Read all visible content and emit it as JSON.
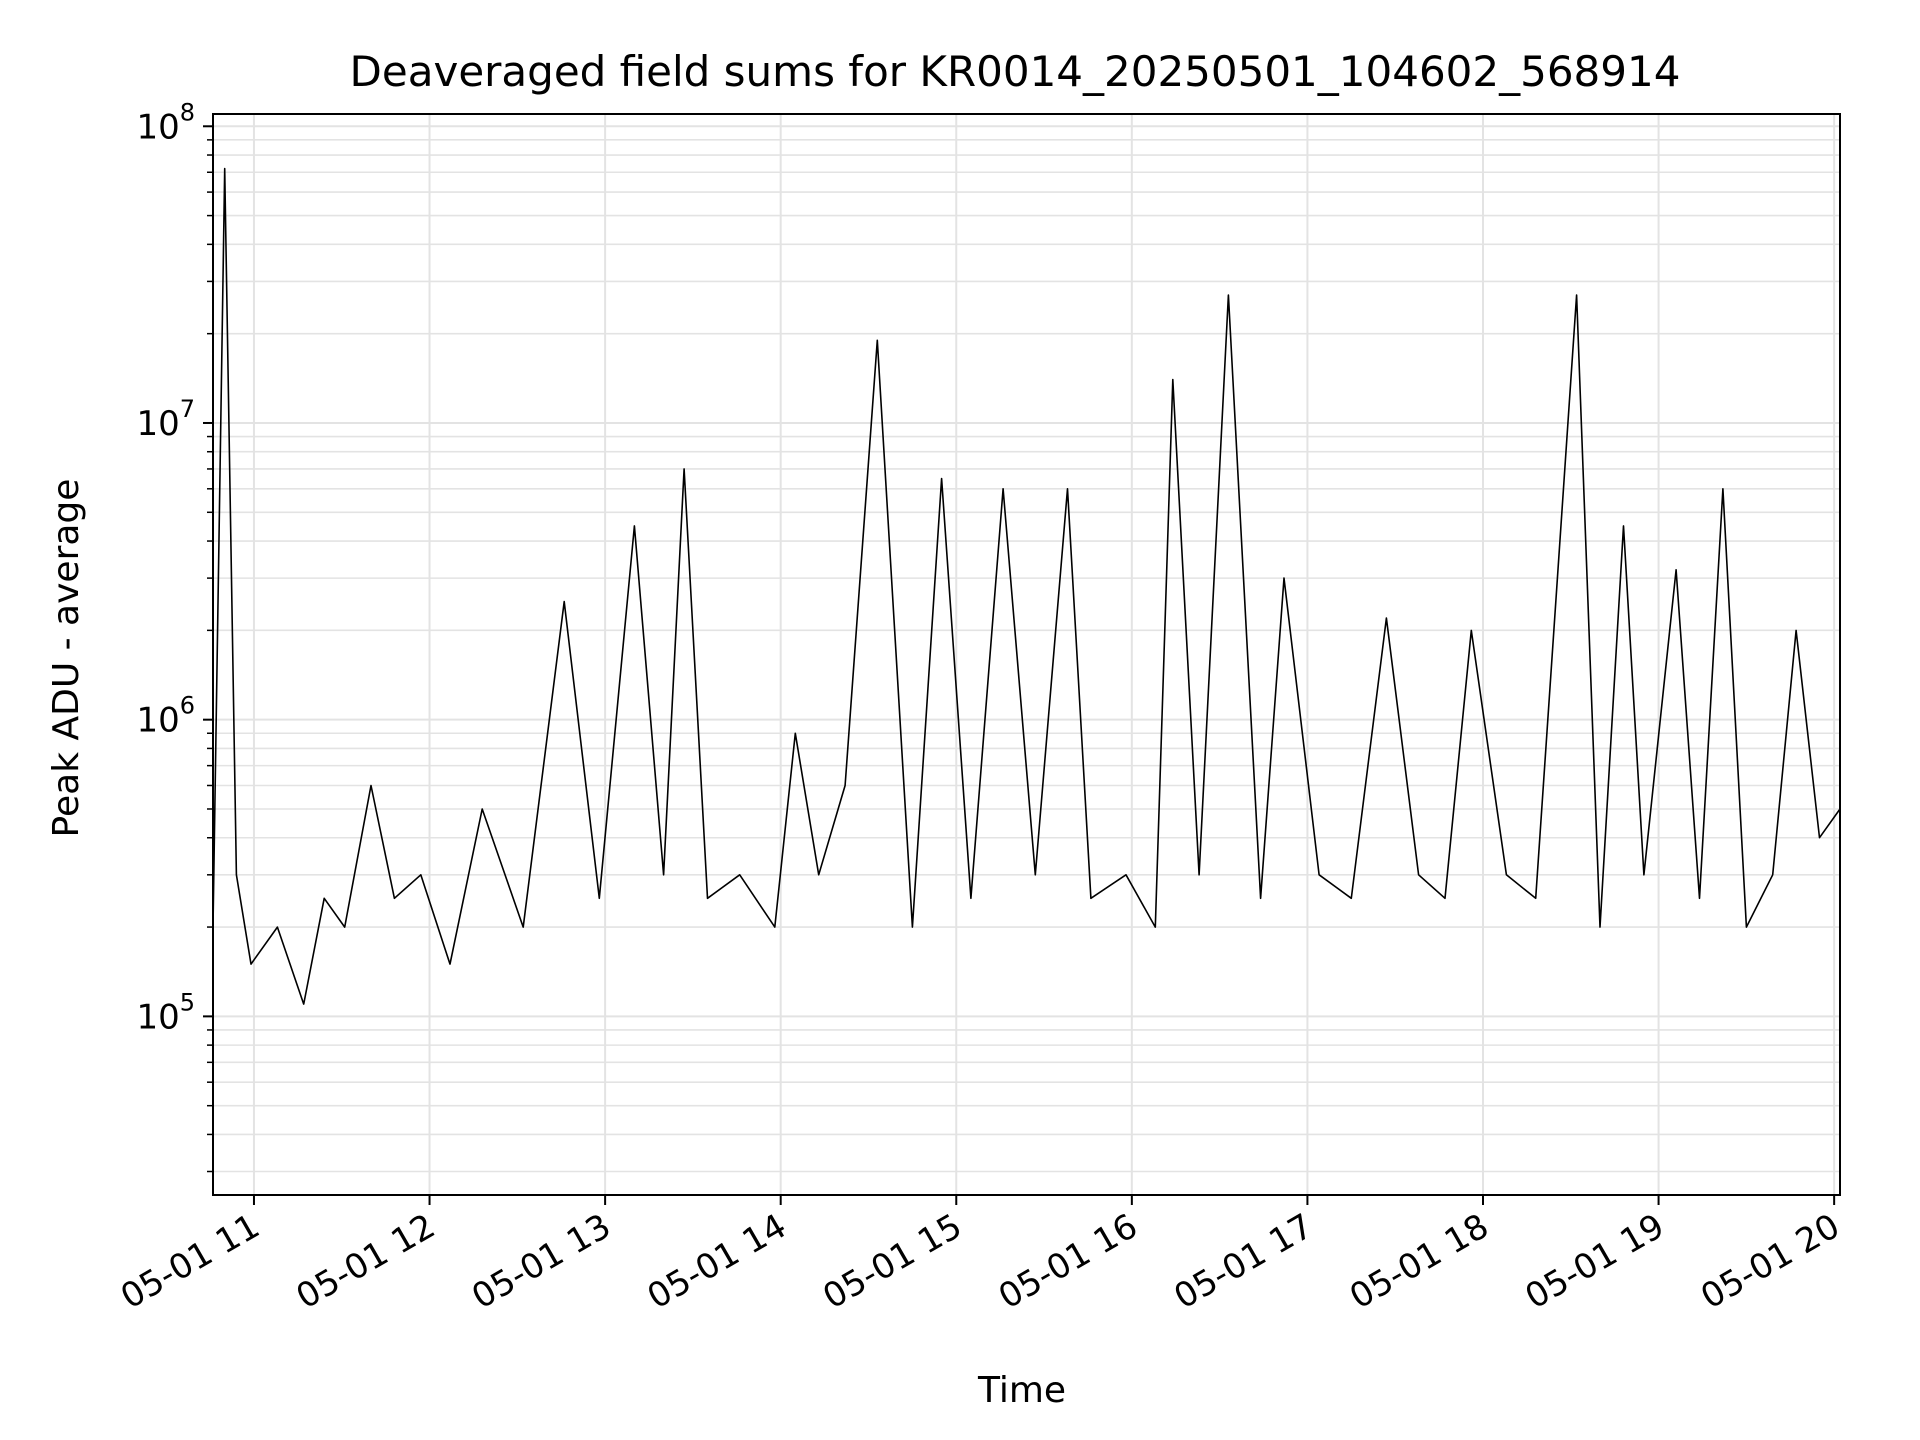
{
  "chart_data": {
    "type": "line",
    "title": "Deaveraged field sums for KR0014_20250501_104602_568914",
    "xlabel": "Time",
    "ylabel": "Peak ADU - average",
    "yscale": "log",
    "ylim": [
      25000,
      110000000
    ],
    "xlim": [
      "2025-05-01 10:46",
      "2025-05-01 20:02"
    ],
    "x_ticks": [
      "05-01 11",
      "05-01 12",
      "05-01 13",
      "05-01 14",
      "05-01 15",
      "05-01 16",
      "05-01 17",
      "05-01 18",
      "05-01 19",
      "05-01 20"
    ],
    "y_ticks": [
      {
        "value": 100000,
        "base": "10",
        "exp": "5"
      },
      {
        "value": 1000000,
        "base": "10",
        "exp": "6"
      },
      {
        "value": 10000000,
        "base": "10",
        "exp": "7"
      },
      {
        "value": 100000000,
        "base": "10",
        "exp": "8"
      }
    ],
    "grid": true,
    "line_color": "#000000",
    "series": [
      {
        "x": [
          "2025-05-01 10:46",
          "2025-05-01 10:50",
          "2025-05-01 10:54",
          "2025-05-01 10:59",
          "2025-05-01 11:08",
          "2025-05-01 11:17",
          "2025-05-01 11:24",
          "2025-05-01 11:31",
          "2025-05-01 11:40",
          "2025-05-01 11:48",
          "2025-05-01 11:57",
          "2025-05-01 12:07",
          "2025-05-01 12:18",
          "2025-05-01 12:32",
          "2025-05-01 12:46",
          "2025-05-01 12:58",
          "2025-05-01 13:10",
          "2025-05-01 13:20",
          "2025-05-01 13:27",
          "2025-05-01 13:35",
          "2025-05-01 13:46",
          "2025-05-01 13:58",
          "2025-05-01 14:05",
          "2025-05-01 14:13",
          "2025-05-01 14:22",
          "2025-05-01 14:33",
          "2025-05-01 14:45",
          "2025-05-01 14:55",
          "2025-05-01 15:05",
          "2025-05-01 15:16",
          "2025-05-01 15:27",
          "2025-05-01 15:38",
          "2025-05-01 15:46",
          "2025-05-01 15:58",
          "2025-05-01 16:08",
          "2025-05-01 16:14",
          "2025-05-01 16:23",
          "2025-05-01 16:33",
          "2025-05-01 16:44",
          "2025-05-01 16:52",
          "2025-05-01 17:04",
          "2025-05-01 17:15",
          "2025-05-01 17:27",
          "2025-05-01 17:38",
          "2025-05-01 17:47",
          "2025-05-01 17:56",
          "2025-05-01 18:08",
          "2025-05-01 18:18",
          "2025-05-01 18:32",
          "2025-05-01 18:40",
          "2025-05-01 18:48",
          "2025-05-01 18:55",
          "2025-05-01 19:06",
          "2025-05-01 19:14",
          "2025-05-01 19:22",
          "2025-05-01 19:30",
          "2025-05-01 19:39",
          "2025-05-01 19:47",
          "2025-05-01 19:55",
          "2025-05-01 20:02"
        ],
        "y": [
          200000,
          72000000,
          300000,
          150000,
          200000,
          110000,
          250000,
          200000,
          600000,
          250000,
          300000,
          150000,
          500000,
          200000,
          2500000,
          250000,
          4500000,
          300000,
          7000000,
          250000,
          300000,
          200000,
          900000,
          300000,
          600000,
          19000000,
          200000,
          6500000,
          250000,
          6000000,
          300000,
          6000000,
          250000,
          300000,
          200000,
          14000000,
          300000,
          27000000,
          250000,
          3000000,
          300000,
          250000,
          2200000,
          300000,
          250000,
          2000000,
          300000,
          250000,
          27000000,
          200000,
          4500000,
          300000,
          3200000,
          250000,
          6000000,
          200000,
          300000,
          2000000,
          400000,
          500000
        ]
      }
    ]
  }
}
